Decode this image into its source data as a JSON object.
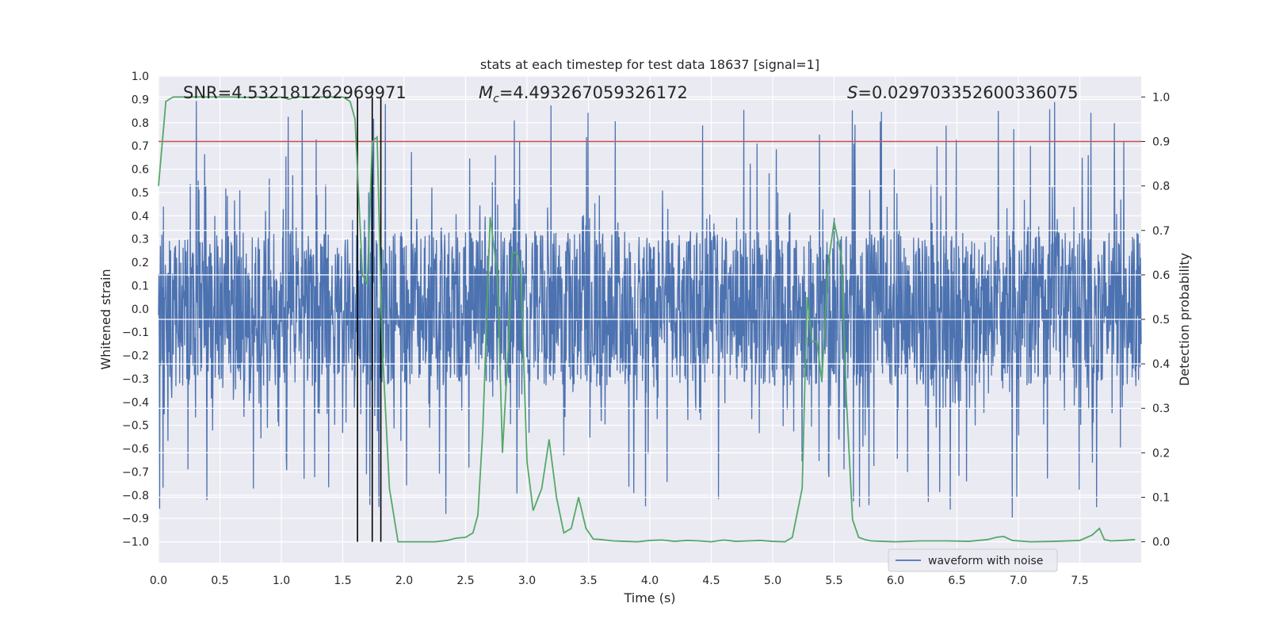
{
  "chart_data": {
    "type": "line",
    "title": "stats at each timestep for test data 18637 [signal=1]",
    "xlabel": "Time (s)",
    "ylabel": "Whitened strain",
    "y2label": "Detection probability",
    "xlim": [
      0.0,
      8.0
    ],
    "ylim": [
      -1.09,
      1.0
    ],
    "y2lim": [
      -0.047,
      1.047
    ],
    "x_ticks": [
      "0.0",
      "0.5",
      "1.0",
      "1.5",
      "2.0",
      "2.5",
      "3.0",
      "3.5",
      "4.0",
      "4.5",
      "5.0",
      "5.5",
      "6.0",
      "6.5",
      "7.0",
      "7.5"
    ],
    "y_ticks": [
      "1.0",
      "0.9",
      "0.8",
      "0.7",
      "0.6",
      "0.5",
      "0.4",
      "0.3",
      "0.2",
      "0.1",
      "0.0",
      "−0.1",
      "−0.2",
      "−0.3",
      "−0.4",
      "−0.5",
      "−0.6",
      "−0.7",
      "−0.8",
      "−0.9",
      "−1.0"
    ],
    "y2_ticks": [
      "1.0",
      "0.9",
      "0.8",
      "0.7",
      "0.6",
      "0.5",
      "0.4",
      "0.3",
      "0.2",
      "0.1",
      "0.0"
    ],
    "annotations": {
      "snr": "SNR=4.532181262969971",
      "mc_symbol": "M",
      "mc_sub": "c",
      "mc_value": "=4.493267059326172",
      "s_symbol": "S",
      "s_value": "=0.029703352600336075"
    },
    "threshold": {
      "axis": "y2",
      "value": 0.9,
      "color": "#c44e52"
    },
    "vertical_lines": [
      1.62,
      1.74,
      1.81
    ],
    "legend": {
      "label": "waveform with noise",
      "position": "lower-right"
    },
    "series": [
      {
        "name": "waveform with noise",
        "axis": "y",
        "color": "#4c72b0",
        "kind": "noise-waveform",
        "samples": 8192,
        "amplitude_core": 0.33,
        "amplitude_peak": 0.9,
        "min": -1.0,
        "max": 0.93
      },
      {
        "name": "Detection probability",
        "axis": "y2",
        "color": "#55a868",
        "x": [
          0.0,
          0.06,
          0.12,
          0.2,
          0.3,
          0.4,
          0.5,
          0.6,
          0.7,
          0.8,
          0.9,
          1.0,
          1.06,
          1.12,
          1.2,
          1.3,
          1.4,
          1.5,
          1.56,
          1.6,
          1.66,
          1.7,
          1.74,
          1.78,
          1.82,
          1.88,
          1.95,
          2.05,
          2.15,
          2.25,
          2.35,
          2.42,
          2.5,
          2.56,
          2.6,
          2.64,
          2.7,
          2.76,
          2.8,
          2.85,
          2.88,
          2.92,
          2.95,
          3.0,
          3.05,
          3.12,
          3.18,
          3.24,
          3.3,
          3.36,
          3.42,
          3.48,
          3.54,
          3.6,
          3.7,
          3.8,
          3.9,
          4.0,
          4.1,
          4.2,
          4.3,
          4.4,
          4.5,
          4.6,
          4.7,
          4.8,
          4.9,
          5.0,
          5.1,
          5.16,
          5.24,
          5.28,
          5.32,
          5.36,
          5.4,
          5.45,
          5.5,
          5.56,
          5.6,
          5.65,
          5.7,
          5.75,
          5.8,
          5.9,
          6.0,
          6.2,
          6.4,
          6.6,
          6.75,
          6.82,
          6.88,
          6.95,
          7.1,
          7.3,
          7.5,
          7.6,
          7.66,
          7.7,
          7.75,
          7.85,
          7.95
        ],
        "values": [
          0.8,
          0.99,
          1.0,
          1.0,
          1.0,
          1.0,
          1.0,
          1.0,
          0.999,
          1.0,
          0.999,
          1.0,
          0.995,
          1.0,
          1.0,
          1.0,
          1.0,
          1.0,
          0.99,
          0.95,
          0.6,
          0.58,
          0.9,
          0.91,
          0.45,
          0.12,
          0.0,
          0.0,
          0.0,
          0.0,
          0.003,
          0.008,
          0.01,
          0.02,
          0.06,
          0.25,
          0.73,
          0.6,
          0.2,
          0.45,
          0.65,
          0.65,
          0.6,
          0.18,
          0.07,
          0.12,
          0.23,
          0.1,
          0.02,
          0.03,
          0.1,
          0.03,
          0.006,
          0.005,
          0.002,
          0.001,
          0.0,
          0.003,
          0.004,
          0.001,
          0.003,
          0.002,
          0.0,
          0.004,
          0.001,
          0.002,
          0.003,
          0.001,
          0.0,
          0.01,
          0.12,
          0.55,
          0.45,
          0.45,
          0.36,
          0.62,
          0.72,
          0.64,
          0.32,
          0.05,
          0.01,
          0.005,
          0.002,
          0.001,
          0.0,
          0.002,
          0.002,
          0.001,
          0.005,
          0.01,
          0.012,
          0.003,
          0.0,
          0.001,
          0.003,
          0.015,
          0.03,
          0.005,
          0.002,
          0.003,
          0.005
        ]
      }
    ]
  }
}
